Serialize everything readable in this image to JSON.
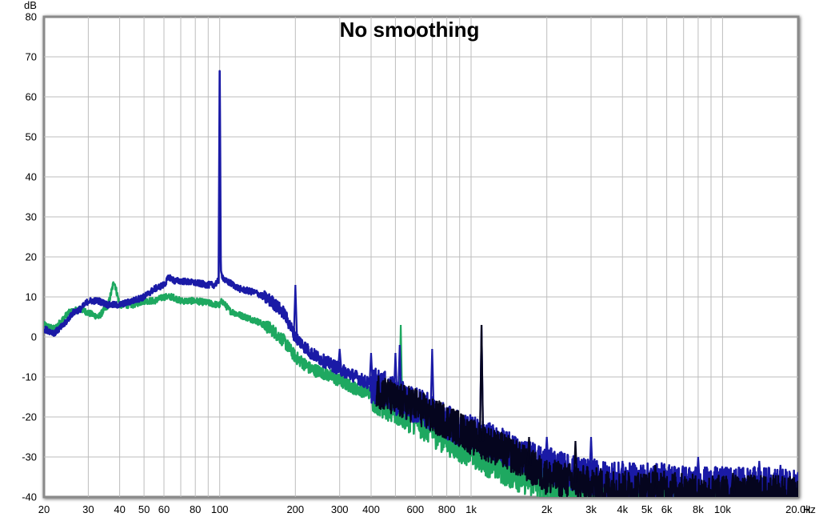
{
  "chart_data": {
    "type": "line",
    "title": "No smoothing",
    "ylabel": "dB",
    "xunit": "Hz",
    "xscale": "log",
    "xlim": [
      20,
      20000
    ],
    "ylim": [
      -40,
      80
    ],
    "grid": true,
    "yticks": [
      -40,
      -30,
      -20,
      -10,
      0,
      10,
      20,
      30,
      40,
      50,
      60,
      70,
      80
    ],
    "xticks": [
      {
        "value": 20,
        "label": "20"
      },
      {
        "value": 30,
        "label": "30"
      },
      {
        "value": 40,
        "label": "40"
      },
      {
        "value": 50,
        "label": "50"
      },
      {
        "value": 60,
        "label": "60"
      },
      {
        "value": 80,
        "label": "80"
      },
      {
        "value": 100,
        "label": "100"
      },
      {
        "value": 200,
        "label": "200"
      },
      {
        "value": 300,
        "label": "300"
      },
      {
        "value": 400,
        "label": "400"
      },
      {
        "value": 600,
        "label": "600"
      },
      {
        "value": 800,
        "label": "800"
      },
      {
        "value": 1000,
        "label": "1k"
      },
      {
        "value": 2000,
        "label": "2k"
      },
      {
        "value": 3000,
        "label": "3k"
      },
      {
        "value": 4000,
        "label": "4k"
      },
      {
        "value": 5000,
        "label": "5k"
      },
      {
        "value": 6000,
        "label": "6k"
      },
      {
        "value": 8000,
        "label": "8k"
      },
      {
        "value": 10000,
        "label": "10k"
      },
      {
        "value": 20000,
        "label": "20.0k"
      }
    ],
    "series": [
      {
        "color": "#1ea860",
        "x": [
          20,
          22,
          25,
          28,
          30,
          33,
          36,
          38,
          40,
          45,
          50,
          55,
          60,
          65,
          70,
          80,
          90,
          98,
          100,
          102,
          110,
          120,
          140,
          160,
          180,
          200,
          230,
          260,
          300,
          350,
          400,
          450,
          500,
          600,
          700,
          800,
          900,
          1000,
          1200,
          1500,
          2000,
          2500,
          3000,
          4000,
          5000,
          6000,
          8000,
          10000,
          15000,
          20000
        ],
        "y": [
          3,
          2,
          6,
          7,
          6,
          5,
          8,
          14,
          8,
          8,
          9,
          9,
          10,
          10,
          9,
          9,
          8.5,
          8,
          8,
          9,
          6.5,
          5.5,
          4,
          2,
          -1,
          -5,
          -8,
          -9,
          -11,
          -13,
          -14,
          -16,
          -18,
          -20,
          -23,
          -25,
          -27,
          -28,
          -31,
          -34,
          -37,
          -39,
          -40,
          -40,
          -40,
          -40,
          -40,
          -40,
          -40,
          -40
        ],
        "spikes": [
          {
            "x": 525,
            "y": 3
          },
          {
            "x": 3000,
            "y": -26
          },
          {
            "x": 14000,
            "y": -33
          }
        ]
      },
      {
        "color": "#1a1aa6",
        "x": [
          20,
          22,
          24,
          26,
          28,
          30,
          33,
          36,
          40,
          45,
          50,
          55,
          60,
          63,
          66,
          70,
          80,
          90,
          95,
          99,
          100,
          101,
          105,
          110,
          120,
          140,
          160,
          180,
          200,
          230,
          260,
          300,
          350,
          400,
          450,
          500,
          600,
          700,
          800,
          900,
          1000,
          1200,
          1500,
          2000,
          2500,
          3000,
          4000,
          5000,
          6000,
          8000,
          10000,
          15000,
          20000
        ],
        "y": [
          2,
          1,
          3,
          6,
          7,
          9,
          9,
          8,
          8,
          9,
          10,
          12,
          13,
          15,
          14,
          14,
          13.5,
          13,
          13,
          14,
          68,
          16,
          14,
          13.5,
          12,
          11,
          9,
          6,
          0,
          -4,
          -6,
          -8,
          -10,
          -12,
          -13,
          -15,
          -17,
          -19,
          -21,
          -23,
          -24,
          -26,
          -29,
          -32,
          -34,
          -35,
          -36,
          -36,
          -36,
          -37,
          -37,
          -37,
          -38
        ],
        "spikes": [
          {
            "x": 200,
            "y": 13
          },
          {
            "x": 300,
            "y": -3
          },
          {
            "x": 400,
            "y": -4
          },
          {
            "x": 500,
            "y": -4
          },
          {
            "x": 520,
            "y": -2
          },
          {
            "x": 700,
            "y": -3
          },
          {
            "x": 1100,
            "y": 3
          },
          {
            "x": 2000,
            "y": -25
          },
          {
            "x": 3000,
            "y": -25
          },
          {
            "x": 4000,
            "y": -31
          },
          {
            "x": 8000,
            "y": -30
          },
          {
            "x": 14000,
            "y": -31
          },
          {
            "x": 17000,
            "y": -32
          }
        ]
      },
      {
        "color": "#05051e",
        "x": [
          420,
          450,
          500,
          600,
          700,
          800,
          900,
          1000,
          1200,
          1500,
          2000,
          2500,
          3000,
          4000,
          5000,
          6000,
          8000,
          10000,
          15000,
          20000
        ],
        "y": [
          -13,
          -14,
          -16,
          -17,
          -20,
          -21,
          -23,
          -25,
          -27,
          -30,
          -35,
          -36,
          -37,
          -38,
          -38,
          -38,
          -39,
          -39,
          -39,
          -39
        ],
        "spikes": [
          {
            "x": 1100,
            "y": 3
          },
          {
            "x": 1700,
            "y": -25
          },
          {
            "x": 2600,
            "y": -26
          },
          {
            "x": 5400,
            "y": -32
          },
          {
            "x": 11000,
            "y": -34
          }
        ]
      }
    ]
  }
}
